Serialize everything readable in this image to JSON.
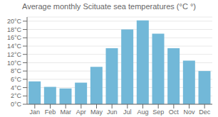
{
  "chart_data": {
    "type": "bar",
    "title": "Average monthly Scituate sea temperatures (°C °)",
    "categories": [
      "Jan",
      "Feb",
      "Mar",
      "Apr",
      "May",
      "Jun",
      "Jul",
      "Aug",
      "Sep",
      "Oct",
      "Nov",
      "Dec"
    ],
    "values": [
      5.5,
      4.2,
      3.8,
      5.2,
      9.0,
      13.5,
      18.0,
      20.2,
      17.0,
      13.5,
      10.5,
      8.0
    ],
    "color": "#72b8d8",
    "ylim": [
      0,
      21
    ],
    "yticks": [
      {
        "value": 0,
        "label": "0°C"
      },
      {
        "value": 2,
        "label": "2°C"
      },
      {
        "value": 4,
        "label": "4°C"
      },
      {
        "value": 6,
        "label": "6°C"
      },
      {
        "value": 8,
        "label": "8°C"
      },
      {
        "value": 10,
        "label": "10°C"
      },
      {
        "value": 12,
        "label": "12°C"
      },
      {
        "value": 14,
        "label": "14°C"
      },
      {
        "value": 16,
        "label": "16°C"
      },
      {
        "value": 18,
        "label": "18°C"
      },
      {
        "value": 20,
        "label": "20°C"
      }
    ],
    "grid": true
  }
}
